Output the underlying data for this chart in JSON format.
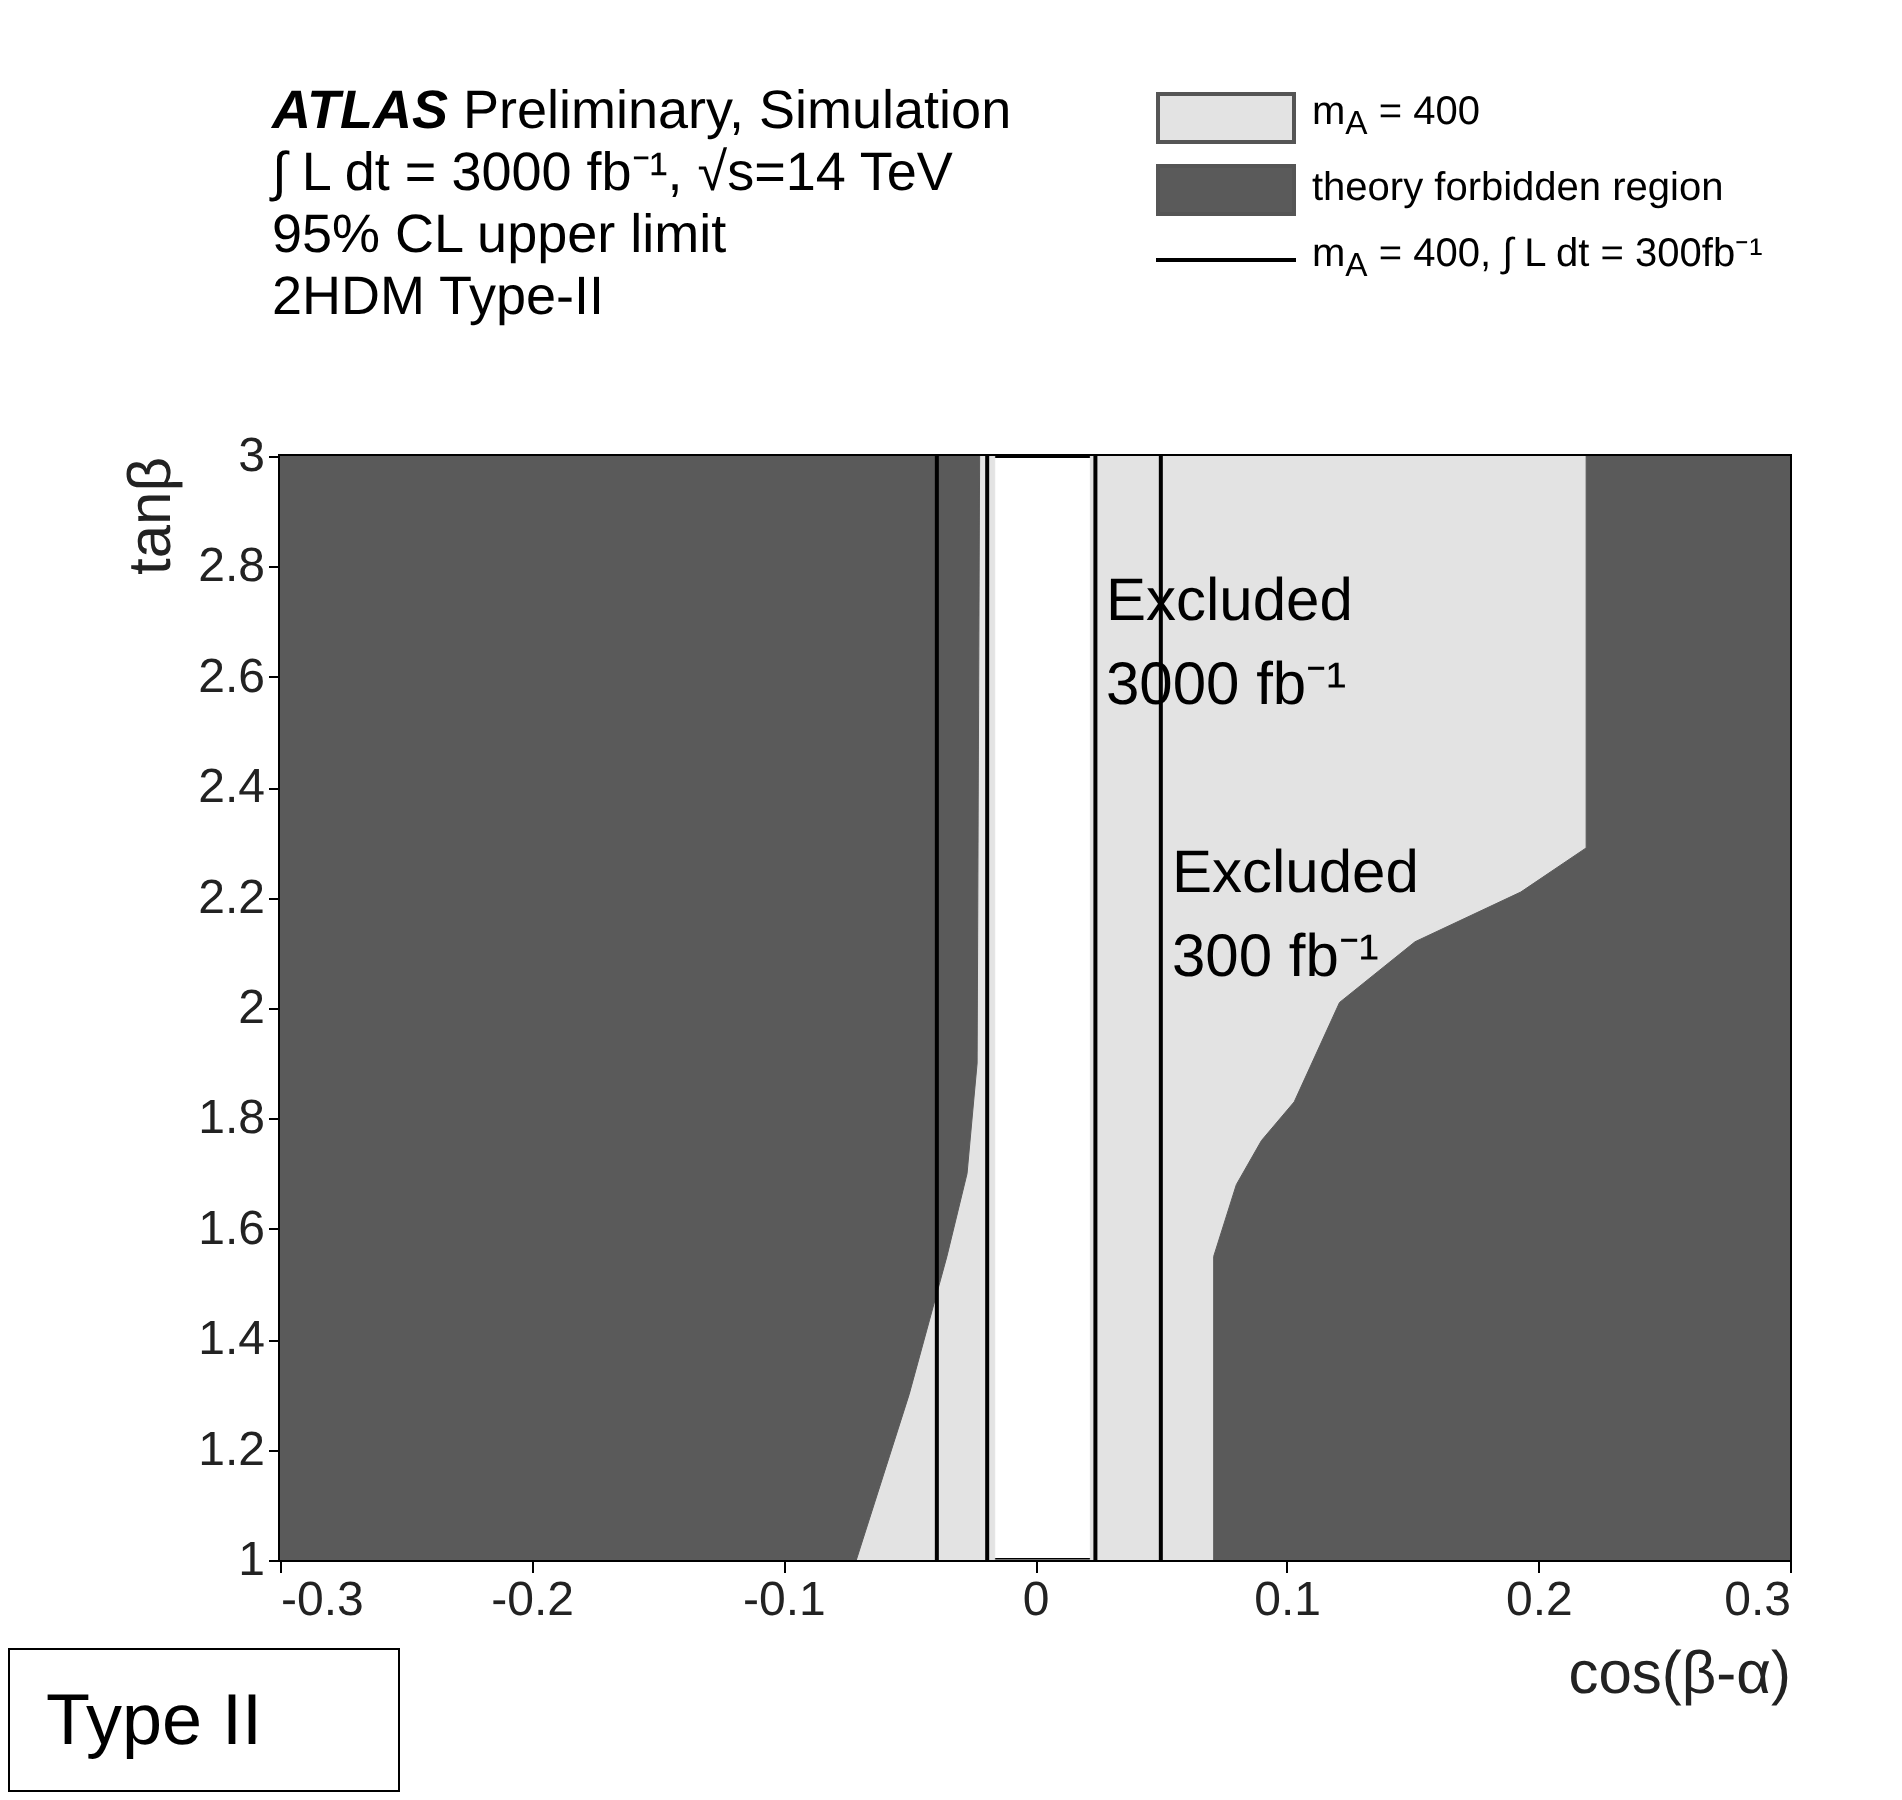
{
  "chart_data": {
    "type": "area",
    "title": "ATLAS Preliminary, Simulation",
    "subtitle": "∫ L dt = 3000 fb⁻¹, √s=14 TeV\n95% CL upper limit\n2HDM Type-II",
    "xlabel": "cos(β-α)",
    "ylabel": "tanβ",
    "xlim": [
      -0.3,
      0.3
    ],
    "xticks": [
      -0.3,
      -0.2,
      -0.1,
      0,
      0.1,
      0.2,
      0.3
    ],
    "ylim": [
      1,
      3
    ],
    "yticks": [
      1,
      1.2,
      1.4,
      1.6,
      1.8,
      2,
      2.2,
      2.4,
      2.6,
      2.8,
      3
    ],
    "grid": false,
    "legend": "top right",
    "series": [
      {
        "name": "m$_{A}$ = 400",
        "color": "#e3e3e3",
        "x": [
          -0.071,
          -0.05,
          -0.035,
          -0.027,
          -0.023,
          -0.022,
          -0.016,
          -0.016,
          0.022,
          0.022,
          0.219,
          0.219,
          0.193,
          0.151,
          0.121,
          0.103,
          0.09,
          0.08,
          0.071,
          0.071
        ],
        "values": [
          1,
          1.3,
          1.55,
          1.7,
          1.9,
          3,
          3,
          1,
          1,
          3,
          3,
          2.29,
          2.21,
          2.12,
          2.01,
          1.83,
          1.76,
          1.68,
          1.55,
          1
        ]
      },
      {
        "name": "theory forbidden region",
        "color": "#5a5a5a",
        "x": [
          -0.3,
          -0.071,
          -0.05,
          -0.035,
          -0.027,
          -0.023,
          -0.022,
          -0.3
        ],
        "values": [
          1,
          1,
          1.3,
          1.55,
          1.7,
          1.9,
          3,
          3
        ]
      },
      {
        "color": "#5a5a5a",
        "x": [
          0.071,
          0.071,
          0.08,
          0.09,
          0.103,
          0.121,
          0.151,
          0.193,
          0.219,
          0.219,
          0.3,
          0.3
        ],
        "values": [
          1,
          1.55,
          1.68,
          1.76,
          1.83,
          2.01,
          2.12,
          2.21,
          2.29,
          3,
          3,
          1
        ]
      },
      {
        "name": "m$_{A}$ = 400, ∫ L dt = 300fb⁻¹",
        "type": "line",
        "color": "#000000",
        "x": [
          -0.039,
          -0.039
        ],
        "values": [
          1,
          3
        ]
      },
      {
        "type": "line",
        "color": "#000000",
        "x": [
          -0.019,
          -0.019
        ],
        "values": [
          1,
          3
        ]
      },
      {
        "type": "line",
        "color": "#000000",
        "x": [
          0.024,
          0.024
        ],
        "values": [
          1,
          3
        ]
      },
      {
        "type": "line",
        "color": "#000000",
        "x": [
          0.05,
          0.05
        ],
        "values": [
          1,
          3
        ]
      }
    ],
    "annotations": [
      "Excluded\n3000 fb⁻¹",
      "Excluded\n300 fb⁻¹",
      "Type II"
    ]
  }
}
